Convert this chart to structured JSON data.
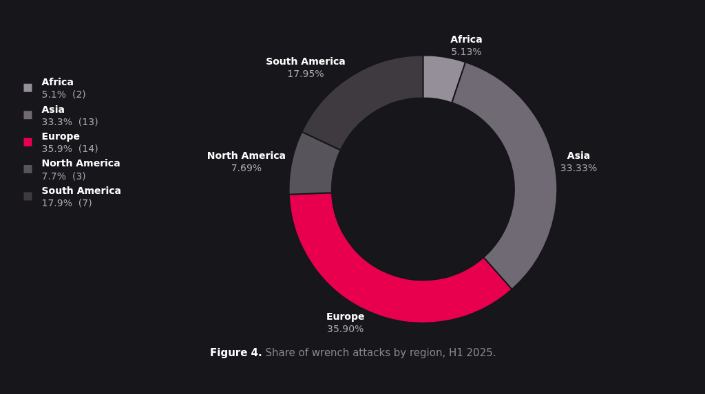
{
  "chart_data": {
    "type": "donut",
    "title": "Figure 4. Share of wrench attacks by region, H1 2025.",
    "categories": [
      "Africa",
      "Asia",
      "Europe",
      "North America",
      "South America"
    ],
    "values": [
      5.13,
      33.33,
      35.9,
      7.69,
      17.95
    ],
    "colors": [
      "#958f99",
      "#6f6a73",
      "#e8004f",
      "#58545b",
      "#3e3a40"
    ],
    "value_labels": [
      "5.13%",
      "33.33%",
      "35.90%",
      "7.69%",
      "17.95%"
    ],
    "annotations": [
      "5.1%  (2)",
      "33.3%  (13)",
      "35.9%  (14)",
      "7.7%  (3)",
      "17.9%  (7)"
    ],
    "legend": "left"
  }
}
